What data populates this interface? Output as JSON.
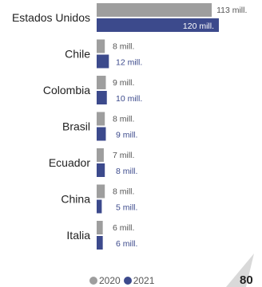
{
  "chart_data": {
    "type": "bar",
    "orientation": "horizontal",
    "categories": [
      "Estados Unidos",
      "Chile",
      "Colombia",
      "Brasil",
      "Ecuador",
      "China",
      "Italia"
    ],
    "series": [
      {
        "name": "2020",
        "values": [
          113,
          8,
          9,
          8,
          7,
          8,
          6
        ],
        "labels": [
          "113 mill.",
          "8 mill.",
          "9 mill.",
          "8 mill.",
          "7 mill.",
          "8 mill.",
          "6 mill."
        ],
        "color": "#9e9e9e"
      },
      {
        "name": "2021",
        "values": [
          120,
          12,
          10,
          9,
          8,
          5,
          6
        ],
        "labels": [
          "120 mill.",
          "12 mill.",
          "10 mill.",
          "9 mill.",
          "8 mill.",
          "5 mill.",
          "6 mill."
        ],
        "color": "#3c4a8c"
      }
    ],
    "legend": "bottom",
    "grid": false
  },
  "legend": {
    "items": [
      "2020",
      "2021"
    ]
  },
  "corner_text": "80"
}
